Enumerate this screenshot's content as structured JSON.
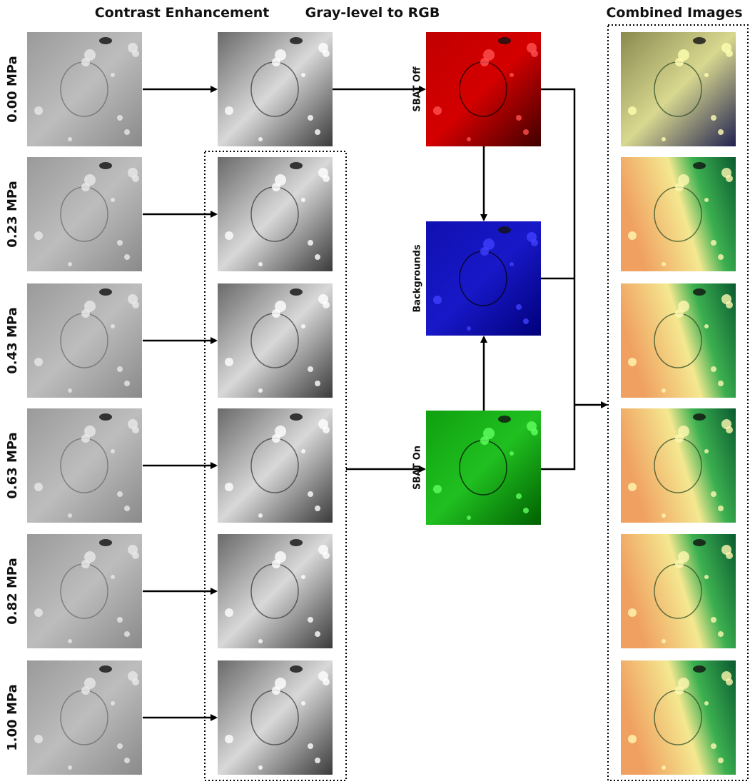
{
  "column_titles": [
    "Contrast Enhancement",
    "Gray-level to RGB",
    "Combined Images"
  ],
  "pressure_labels": [
    "0.00 MPa",
    "0.23 MPa",
    "0.43 MPa",
    "0.63 MPa",
    "0.82 MPa",
    "1.00 MPa"
  ],
  "channel_labels": [
    "SBAT Off",
    "Backgrounds",
    "SBAT On"
  ]
}
